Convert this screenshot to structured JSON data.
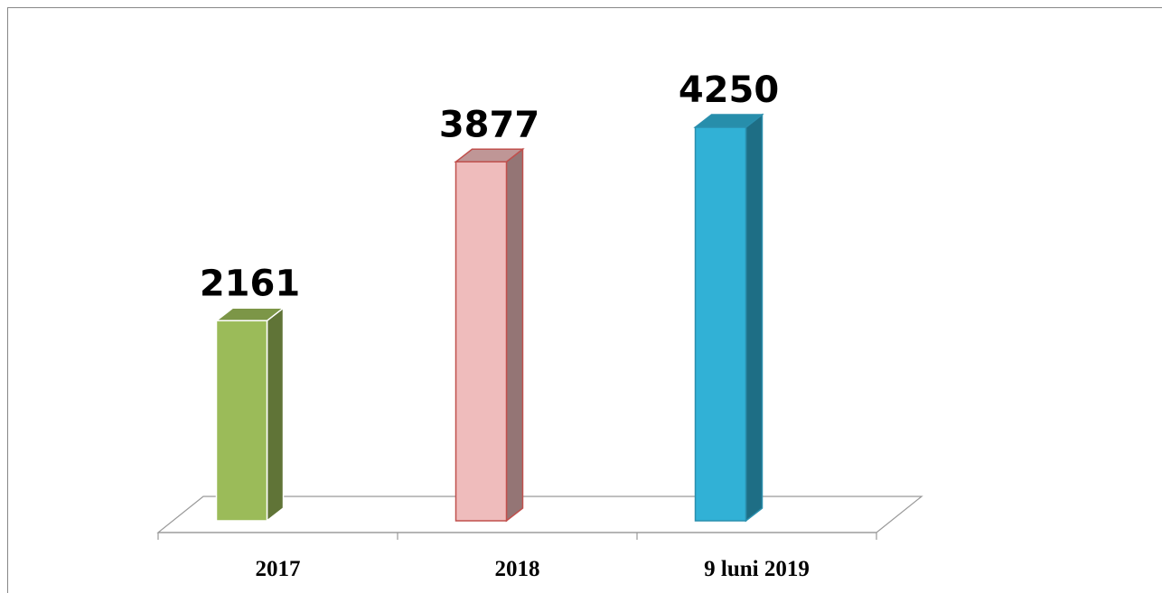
{
  "chart_data": {
    "type": "bar3d",
    "categories": [
      "2017",
      "2018",
      "9 luni 2019"
    ],
    "values": [
      2161,
      3877,
      4250
    ],
    "colors": [
      "#9bbb59",
      "#efbcbc",
      "#31b1d6"
    ],
    "edge_colors": [
      "#ffffff",
      "#c0504d",
      "#2a8fae"
    ]
  }
}
